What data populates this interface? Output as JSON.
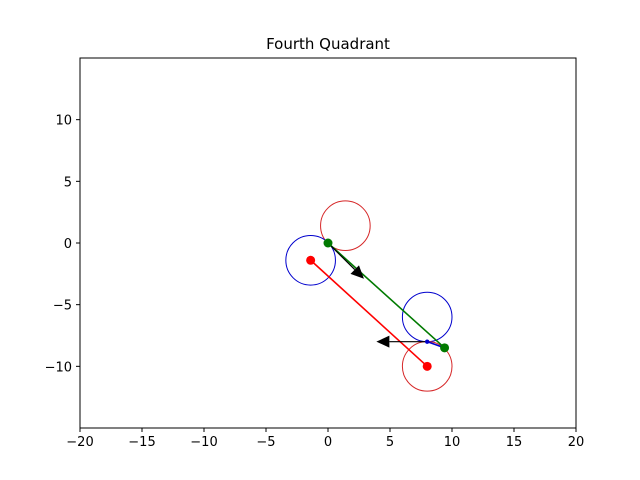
{
  "chart_data": {
    "type": "scatter",
    "title": "Fourth  Quadrant",
    "xlabel": "",
    "ylabel": "",
    "xlim": [
      -20,
      20
    ],
    "ylim": [
      -15,
      15
    ],
    "x_ticks": [
      -20,
      -15,
      -10,
      -5,
      0,
      5,
      10,
      15,
      20
    ],
    "y_ticks": [
      -10,
      -5,
      0,
      5,
      10
    ],
    "x_tick_labels": [
      "−20",
      "−15",
      "−10",
      "−5",
      "0",
      "5",
      "10",
      "15",
      "20"
    ],
    "y_tick_labels": [
      "−10",
      "−5",
      "0",
      "5",
      "10"
    ],
    "grid": false,
    "legend": "none",
    "colors": {
      "red": "#ff0000",
      "circle_red": "#d62728",
      "blue": "#0000cd",
      "green": "#007a00",
      "black": "#000000"
    },
    "circles": [
      {
        "cx": 1.4,
        "cy": 1.4,
        "r": 2.0,
        "color": "circle_red"
      },
      {
        "cx": -1.4,
        "cy": -1.4,
        "r": 2.0,
        "color": "blue"
      },
      {
        "cx": 8.0,
        "cy": -6.0,
        "r": 2.0,
        "color": "blue"
      },
      {
        "cx": 8.0,
        "cy": -10.0,
        "r": 2.0,
        "color": "circle_red"
      }
    ],
    "lines": [
      {
        "from": [
          -1.4,
          -1.4
        ],
        "to": [
          8.0,
          -10.0
        ],
        "color": "red"
      },
      {
        "from": [
          0.0,
          0.0
        ],
        "to": [
          9.4,
          -8.5
        ],
        "color": "green"
      },
      {
        "from": [
          8.0,
          -8.0
        ],
        "to": [
          9.4,
          -8.5
        ],
        "color": "blue"
      }
    ],
    "arrows": [
      {
        "from": [
          0.0,
          0.0
        ],
        "to": [
          2.9,
          -2.9
        ],
        "color": "black"
      },
      {
        "from": [
          8.0,
          -8.0
        ],
        "to": [
          3.9,
          -8.0
        ],
        "color": "black"
      }
    ],
    "points": [
      {
        "x": -1.4,
        "y": -1.4,
        "color": "red",
        "size": "large"
      },
      {
        "x": 8.0,
        "y": -10.0,
        "color": "red",
        "size": "large"
      },
      {
        "x": 0.0,
        "y": 0.0,
        "color": "green",
        "size": "large"
      },
      {
        "x": 9.4,
        "y": -8.5,
        "color": "green",
        "size": "large"
      },
      {
        "x": 8.0,
        "y": -8.0,
        "color": "blue",
        "size": "small"
      }
    ]
  }
}
